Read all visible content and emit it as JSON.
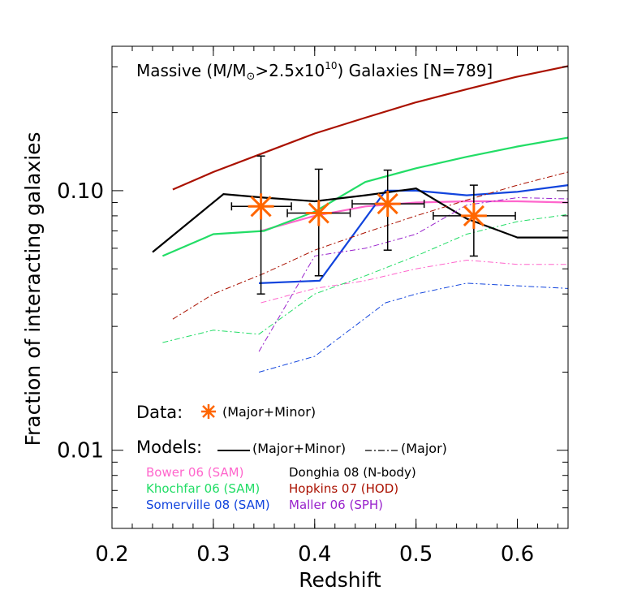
{
  "chart_data": {
    "type": "line",
    "title": "Massive (M/M⊙>2.5x10¹⁰) Galaxies [N=789]",
    "title_parts": {
      "pre": "Massive (M/M",
      "sun": "⊙",
      "mid": ">2.5x10",
      "sup": "10",
      "post": ") Galaxies [N=789]"
    },
    "xlabel": "Redshift",
    "ylabel": "Fraction of interacting galaxies",
    "xlim": [
      0.2,
      0.65
    ],
    "ylim": [
      0.005,
      0.36
    ],
    "yscale": "log",
    "grid": false,
    "x_ticks": [
      {
        "value": 0.2,
        "label": "0.2"
      },
      {
        "value": 0.3,
        "label": "0.3"
      },
      {
        "value": 0.4,
        "label": "0.4"
      },
      {
        "value": 0.5,
        "label": "0.5"
      },
      {
        "value": 0.6,
        "label": "0.6"
      }
    ],
    "y_ticks": [
      {
        "value": 0.01,
        "label": "0.01"
      },
      {
        "value": 0.1,
        "label": "0.10"
      }
    ],
    "data_points": {
      "name": "Data (Major+Minor)",
      "color": "#ff6600",
      "points": [
        {
          "x": 0.347,
          "y": 0.087,
          "xlo": 0.318,
          "xhi": 0.377,
          "ylo": 0.04,
          "yhi": 0.136
        },
        {
          "x": 0.404,
          "y": 0.082,
          "xlo": 0.373,
          "xhi": 0.435,
          "ylo": 0.047,
          "yhi": 0.121
        },
        {
          "x": 0.472,
          "y": 0.089,
          "xlo": 0.437,
          "xhi": 0.508,
          "ylo": 0.059,
          "yhi": 0.12
        },
        {
          "x": 0.557,
          "y": 0.08,
          "xlo": 0.517,
          "xhi": 0.598,
          "ylo": 0.056,
          "yhi": 0.105
        }
      ]
    },
    "series": [
      {
        "name": "Bower 06 (SAM)",
        "kind": "Major+Minor",
        "color": "#ff66cc",
        "x": [
          0.347,
          0.4,
          0.45,
          0.5,
          0.55,
          0.6,
          0.65
        ],
        "y": [
          0.07,
          0.08,
          0.087,
          0.09,
          0.091,
          0.091,
          0.09
        ]
      },
      {
        "name": "Bower 06 (SAM)",
        "kind": "Major",
        "color": "#ff66cc",
        "x": [
          0.347,
          0.4,
          0.45,
          0.5,
          0.55,
          0.6,
          0.65
        ],
        "y": [
          0.037,
          0.042,
          0.045,
          0.05,
          0.054,
          0.052,
          0.052
        ]
      },
      {
        "name": "Khochfar 06 (SAM)",
        "kind": "Major+Minor",
        "color": "#22dd66",
        "x": [
          0.25,
          0.3,
          0.35,
          0.4,
          0.45,
          0.5,
          0.55,
          0.6,
          0.65
        ],
        "y": [
          0.056,
          0.068,
          0.07,
          0.083,
          0.108,
          0.122,
          0.135,
          0.148,
          0.16
        ]
      },
      {
        "name": "Khochfar 06 (SAM)",
        "kind": "Major",
        "color": "#22dd66",
        "x": [
          0.25,
          0.3,
          0.345,
          0.4,
          0.45,
          0.5,
          0.55,
          0.6,
          0.65
        ],
        "y": [
          0.026,
          0.029,
          0.028,
          0.04,
          0.047,
          0.056,
          0.068,
          0.076,
          0.081
        ]
      },
      {
        "name": "Somerville 08 (SAM)",
        "kind": "Major+Minor",
        "color": "#1144dd",
        "x": [
          0.345,
          0.405,
          0.47,
          0.5,
          0.55,
          0.6,
          0.65
        ],
        "y": [
          0.044,
          0.045,
          0.1,
          0.1,
          0.096,
          0.099,
          0.105
        ]
      },
      {
        "name": "Somerville 08 (SAM)",
        "kind": "Major",
        "color": "#1144dd",
        "x": [
          0.345,
          0.4,
          0.47,
          0.5,
          0.55,
          0.6,
          0.65
        ],
        "y": [
          0.02,
          0.023,
          0.037,
          0.04,
          0.044,
          0.043,
          0.042
        ]
      },
      {
        "name": "Donghia 08 (N-body)",
        "kind": "Major+Minor",
        "color": "#000000",
        "x": [
          0.24,
          0.31,
          0.35,
          0.4,
          0.45,
          0.5,
          0.55,
          0.6,
          0.65
        ],
        "y": [
          0.058,
          0.097,
          0.094,
          0.091,
          0.096,
          0.102,
          0.078,
          0.066,
          0.066
        ]
      },
      {
        "name": "Hopkins 07 (HOD)",
        "kind": "Major+Minor",
        "color": "#aa1100",
        "x": [
          0.26,
          0.3,
          0.35,
          0.4,
          0.45,
          0.5,
          0.55,
          0.6,
          0.65
        ],
        "y": [
          0.101,
          0.118,
          0.14,
          0.166,
          0.191,
          0.219,
          0.246,
          0.275,
          0.302
        ]
      },
      {
        "name": "Hopkins 07 (HOD)",
        "kind": "Major",
        "color": "#aa1100",
        "x": [
          0.26,
          0.3,
          0.35,
          0.4,
          0.45,
          0.5,
          0.55,
          0.6,
          0.65
        ],
        "y": [
          0.032,
          0.04,
          0.048,
          0.059,
          0.069,
          0.08,
          0.092,
          0.105,
          0.118
        ]
      },
      {
        "name": "Maller 06 (SPH)",
        "kind": "Major",
        "color": "#9922cc",
        "x": [
          0.345,
          0.4,
          0.45,
          0.5,
          0.55,
          0.6,
          0.65
        ],
        "y": [
          0.024,
          0.056,
          0.06,
          0.068,
          0.088,
          0.094,
          0.093
        ]
      }
    ],
    "legend": {
      "data_label": "Data:",
      "data_desc": "(Major+Minor)",
      "models_label": "Models:",
      "solid_desc": "(Major+Minor)",
      "dashed_desc": "(Major)",
      "entries": [
        {
          "label": "Bower 06 (SAM)",
          "color": "#ff66cc"
        },
        {
          "label": "Donghia 08 (N-body)",
          "color": "#000000"
        },
        {
          "label": "Khochfar 06 (SAM)",
          "color": "#22dd66"
        },
        {
          "label": "Hopkins 07 (HOD)",
          "color": "#aa1100"
        },
        {
          "label": "Somerville 08 (SAM)",
          "color": "#1144dd"
        },
        {
          "label": "Maller 06 (SPH)",
          "color": "#9922cc"
        }
      ]
    }
  }
}
